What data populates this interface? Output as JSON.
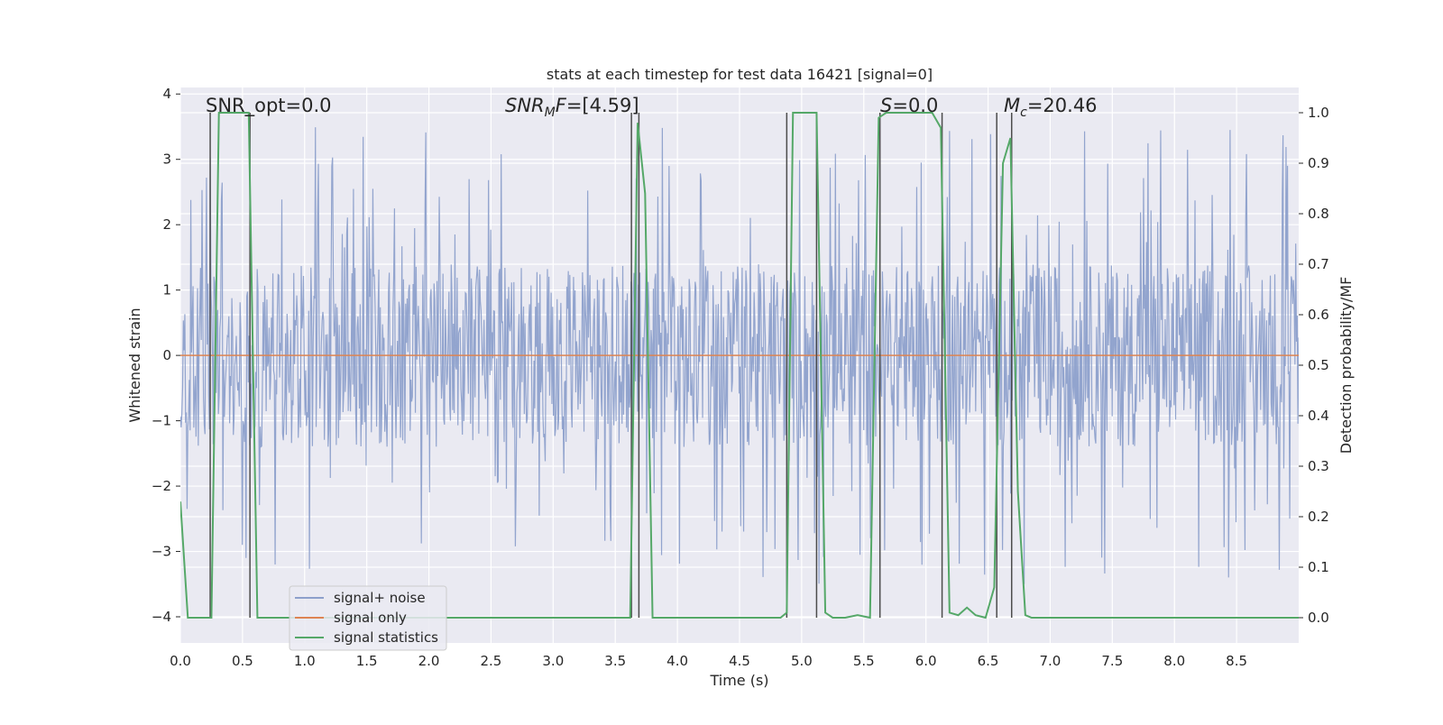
{
  "chart_data": {
    "type": "line",
    "title": "stats at each timestep for test data 16421 [signal=0]",
    "xlabel": "Time (s)",
    "ylabel": "Whitened strain",
    "y2label": "Detection probability/MF",
    "xlim": [
      0.0,
      9.0
    ],
    "ylim": [
      -4.4,
      4.1
    ],
    "y2lim": [
      -0.05,
      1.05
    ],
    "xticks": [
      0.0,
      0.5,
      1.0,
      1.5,
      2.0,
      2.5,
      3.0,
      3.5,
      4.0,
      4.5,
      5.0,
      5.5,
      6.0,
      6.5,
      7.0,
      7.5,
      8.0,
      8.5
    ],
    "xtick_labels": [
      "0.0",
      "0.5",
      "1.0",
      "1.5",
      "2.0",
      "2.5",
      "3.0",
      "3.5",
      "4.0",
      "4.5",
      "5.0",
      "5.5",
      "6.0",
      "6.5",
      "7.0",
      "7.5",
      "8.0",
      "8.5"
    ],
    "yticks": [
      -4,
      -3,
      -2,
      -1,
      0,
      1,
      2,
      3,
      4
    ],
    "ytick_labels": [
      "−4",
      "−3",
      "−2",
      "−1",
      "0",
      "1",
      "2",
      "3",
      "4"
    ],
    "y2ticks": [
      0.0,
      0.1,
      0.2,
      0.3,
      0.4,
      0.5,
      0.6,
      0.7,
      0.8,
      0.9,
      1.0
    ],
    "y2tick_labels": [
      "0.0",
      "0.1",
      "0.2",
      "0.3",
      "0.4",
      "0.5",
      "0.6",
      "0.7",
      "0.8",
      "0.9",
      "1.0"
    ],
    "annotations": {
      "snr_opt": "SNR_opt=0.0",
      "snr_mf_sym": "SNR",
      "snr_mf_sub": "M",
      "snr_mf_rest": "F=[4.59]",
      "s_sym": "S",
      "s_rest": "=0.0",
      "mc_sym": "M",
      "mc_sub": "c",
      "mc_rest": "=20.46"
    },
    "legend": {
      "position": "lower-left",
      "entries": [
        "signal+ noise",
        "signal only",
        "signal statistics"
      ]
    },
    "colors": {
      "noise": "#8da0cb",
      "signal": "#dd8452",
      "stats": "#55a868",
      "background": "#eaeaf2",
      "vlines": "#4c4c4c"
    },
    "series": [
      {
        "name": "signal+ noise",
        "axis": "left",
        "kind": "noise",
        "description_values": {
          "duration_s": 9.0,
          "core_amplitude": 1.4,
          "peak_max": 3.7,
          "peak_min": -4.0
        }
      },
      {
        "name": "signal only",
        "axis": "left",
        "x": [
          0.0,
          9.0
        ],
        "y": [
          0.0,
          0.0
        ]
      },
      {
        "name": "signal statistics",
        "axis": "right",
        "x": [
          0.0,
          0.06,
          0.25,
          0.31,
          0.55,
          0.62,
          3.62,
          3.68,
          3.74,
          3.8,
          4.83,
          4.88,
          4.93,
          5.12,
          5.19,
          5.25,
          5.35,
          5.45,
          5.55,
          5.62,
          5.68,
          6.05,
          6.12,
          6.19,
          6.26,
          6.33,
          6.4,
          6.48,
          6.55,
          6.62,
          6.68,
          6.74,
          6.8,
          6.85,
          9.0
        ],
        "y": [
          0.23,
          0.0,
          0.0,
          1.0,
          1.0,
          0.0,
          0.0,
          0.98,
          0.84,
          0.0,
          0.0,
          0.01,
          1.0,
          1.0,
          0.01,
          0.0,
          0.0,
          0.005,
          0.0,
          0.99,
          1.0,
          1.0,
          0.97,
          0.01,
          0.005,
          0.02,
          0.005,
          0.0,
          0.06,
          0.9,
          0.95,
          0.25,
          0.005,
          0.0,
          0.0
        ]
      }
    ],
    "vlines": [
      0.24,
      0.56,
      3.63,
      3.69,
      4.88,
      5.12,
      5.63,
      6.13,
      6.57,
      6.69
    ]
  }
}
